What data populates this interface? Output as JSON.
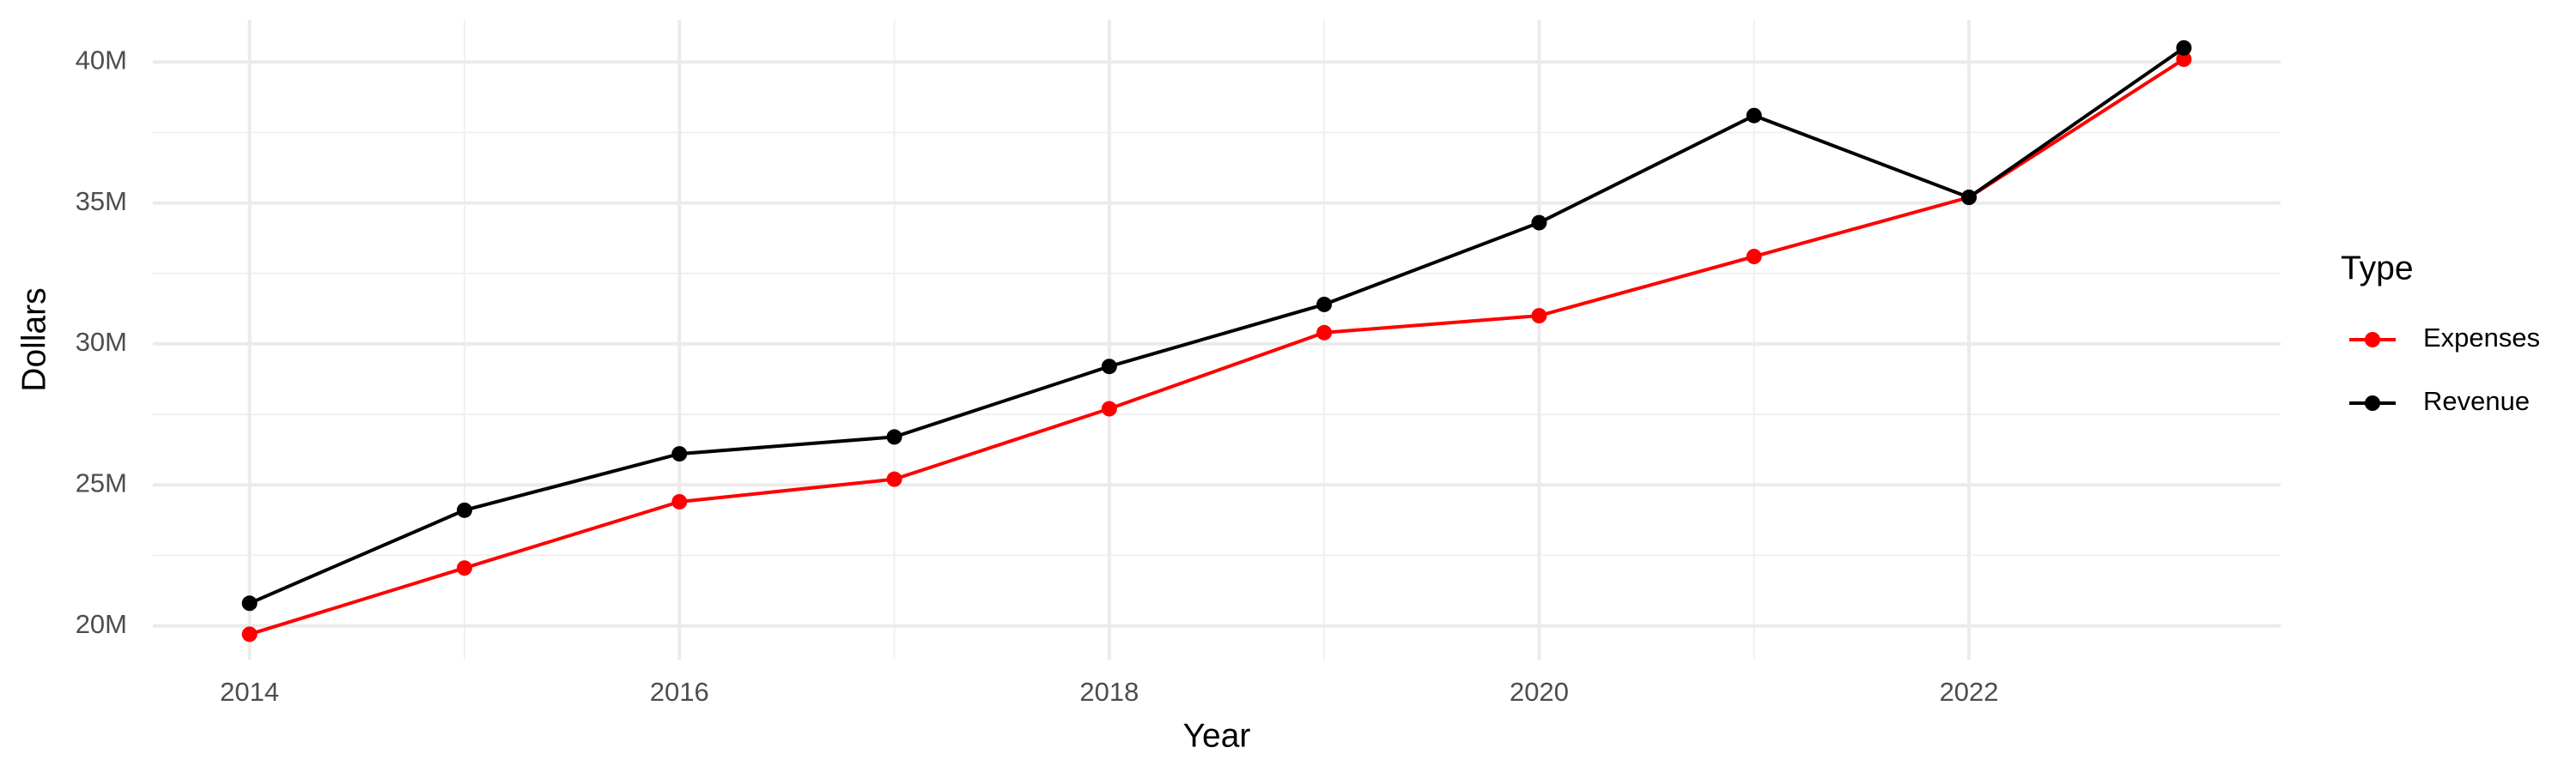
{
  "chart_data": {
    "type": "line",
    "x_label": "Year",
    "y_label": "Dollars",
    "legend_title": "Type",
    "x": [
      2014,
      2015,
      2016,
      2017,
      2018,
      2019,
      2020,
      2021,
      2022,
      2023
    ],
    "series": [
      {
        "name": "Expenses",
        "color": "#ff0000",
        "values": [
          19700000,
          22050000,
          24400000,
          25200000,
          27700000,
          30400000,
          31000000,
          33100000,
          35200000,
          40100000
        ]
      },
      {
        "name": "Revenue",
        "color": "#000000",
        "values": [
          20800000,
          24100000,
          26100000,
          26700000,
          29200000,
          31400000,
          34300000,
          38100000,
          35200000,
          40500000
        ]
      }
    ],
    "xlim": [
      2013.55,
      2023.45
    ],
    "xticks": [
      2014,
      2016,
      2018,
      2020,
      2022
    ],
    "ylim": [
      18800000,
      41500000
    ],
    "yticks": [
      {
        "value": 20000000,
        "label": "20M"
      },
      {
        "value": 25000000,
        "label": "25M"
      },
      {
        "value": 30000000,
        "label": "30M"
      },
      {
        "value": 35000000,
        "label": "35M"
      },
      {
        "value": 40000000,
        "label": "40M"
      }
    ],
    "grid": true,
    "legend_position": "right"
  }
}
